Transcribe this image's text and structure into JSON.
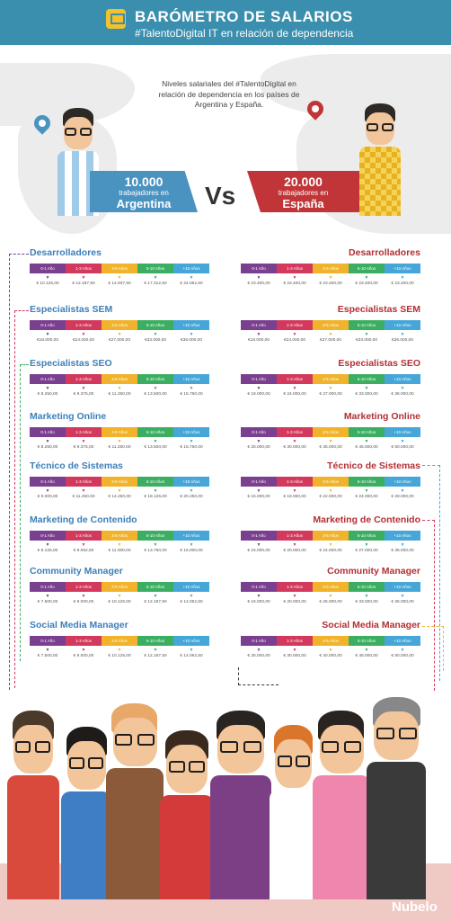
{
  "header": {
    "title": "BARÓMETRO DE SALARIOS",
    "subtitle": "#TalentoDigital IT en relación de dependencia",
    "icon": "monitor-icon"
  },
  "intro": "Niveles salariales del #TalentoDigital en relación de dependencia en los países de Argentina y España.",
  "argentina": {
    "number": "10.000",
    "label": "trabajadores en",
    "country": "Argentina"
  },
  "spain": {
    "number": "20.000",
    "label": "trabajadores en",
    "country": "España"
  },
  "vs": "Vs",
  "ranges": [
    "0-1 Año",
    "1-3 Años",
    "3-5 Años",
    "5-10 Años",
    "+10 Años"
  ],
  "colors": {
    "header": "#3a8eae",
    "argentina": "#4a93c1",
    "spain": "#c13538",
    "bars": [
      "#7b3f8f",
      "#d2395c",
      "#f0b32b",
      "#3cae62",
      "#46a6d8"
    ]
  },
  "sections_ar": [
    {
      "title": "Desarrolladores",
      "values": [
        "€ 10.125,00",
        "€ 12.187,50",
        "€ 14.937,50",
        "€ 17.312,50",
        "€ 24.062,50"
      ]
    },
    {
      "title": "Especialistas SEM",
      "values": [
        "€18.000,00",
        "€24.000,00",
        "€27.000,00",
        "€33.000,00",
        "€36.000,00"
      ]
    },
    {
      "title": "Especialistas SEO",
      "values": [
        "€ 8.250,00",
        "€ 9.375,00",
        "€ 11.250,00",
        "€ 13.500,00",
        "€ 15.750,00"
      ]
    },
    {
      "title": "Marketing Online",
      "values": [
        "€ 8.250,00",
        "€ 9.375,00",
        "€ 11.250,00",
        "€ 13.500,00",
        "€ 15.750,00"
      ]
    },
    {
      "title": "Técnico de Sistemas",
      "values": [
        "€ 9.000,00",
        "€ 11.250,00",
        "€ 14.250,00",
        "€ 18.125,00",
        "€ 20.250,00"
      ]
    },
    {
      "title": "Marketing de Contenido",
      "values": [
        "€ 8.125,00",
        "€ 9.062,50",
        "€ 11.000,00",
        "€ 13.750,00",
        "€ 15.000,00"
      ]
    },
    {
      "title": "Community Manager",
      "values": [
        "€ 7.500,00",
        "€ 9.000,00",
        "€ 10.125,00",
        "€ 12.187,50",
        "€ 14.062,50"
      ]
    },
    {
      "title": "Social Media Manager",
      "values": [
        "€ 7.500,00",
        "€ 9.000,00",
        "€ 10.125,00",
        "€ 12.187,50",
        "€ 14.062,50"
      ]
    }
  ],
  "sections_es": [
    {
      "title": "Desarrolladores",
      "values": [
        "€ 23.400,00",
        "€ 23.400,00",
        "€ 23.400,00",
        "€ 23.400,00",
        "€ 23.400,00"
      ]
    },
    {
      "title": "Especialistas SEM",
      "values": [
        "€18.000,00",
        "€24.000,00",
        "€27.000,00",
        "€33.000,00",
        "€36.000,00"
      ]
    },
    {
      "title": "Especialistas SEO",
      "values": [
        "€ 18.000,00",
        "€ 24.000,00",
        "€ 27.000,00",
        "€ 33.000,00",
        "€ 36.000,00"
      ]
    },
    {
      "title": "Marketing Online",
      "values": [
        "€ 25.000,00",
        "€ 30.000,00",
        "€ 35.000,00",
        "€ 45.000,00",
        "€ 60.000,00"
      ]
    },
    {
      "title": "Técnico de Sistemas",
      "values": [
        "€ 15.000,00",
        "€ 18.000,00",
        "€ 22.000,00",
        "€ 24.000,00",
        "€ 29.000,00"
      ]
    },
    {
      "title": "Marketing de Contenido",
      "values": [
        "€ 16.000,00",
        "€ 20.000,00",
        "€ 24.000,00",
        "€ 27.000,00",
        "€ 35.000,00"
      ]
    },
    {
      "title": "Community Manager",
      "values": [
        "€ 16.000,00",
        "€ 20.000,00",
        "€ 26.000,00",
        "€ 33.000,00",
        "€ 36.000,00"
      ]
    },
    {
      "title": "Social Media Manager",
      "values": [
        "€ 25.000,00",
        "€ 30.000,00",
        "€ 40.000,00",
        "€ 45.000,00",
        "€ 60.000,00"
      ]
    }
  ],
  "brand": "Nubelo"
}
